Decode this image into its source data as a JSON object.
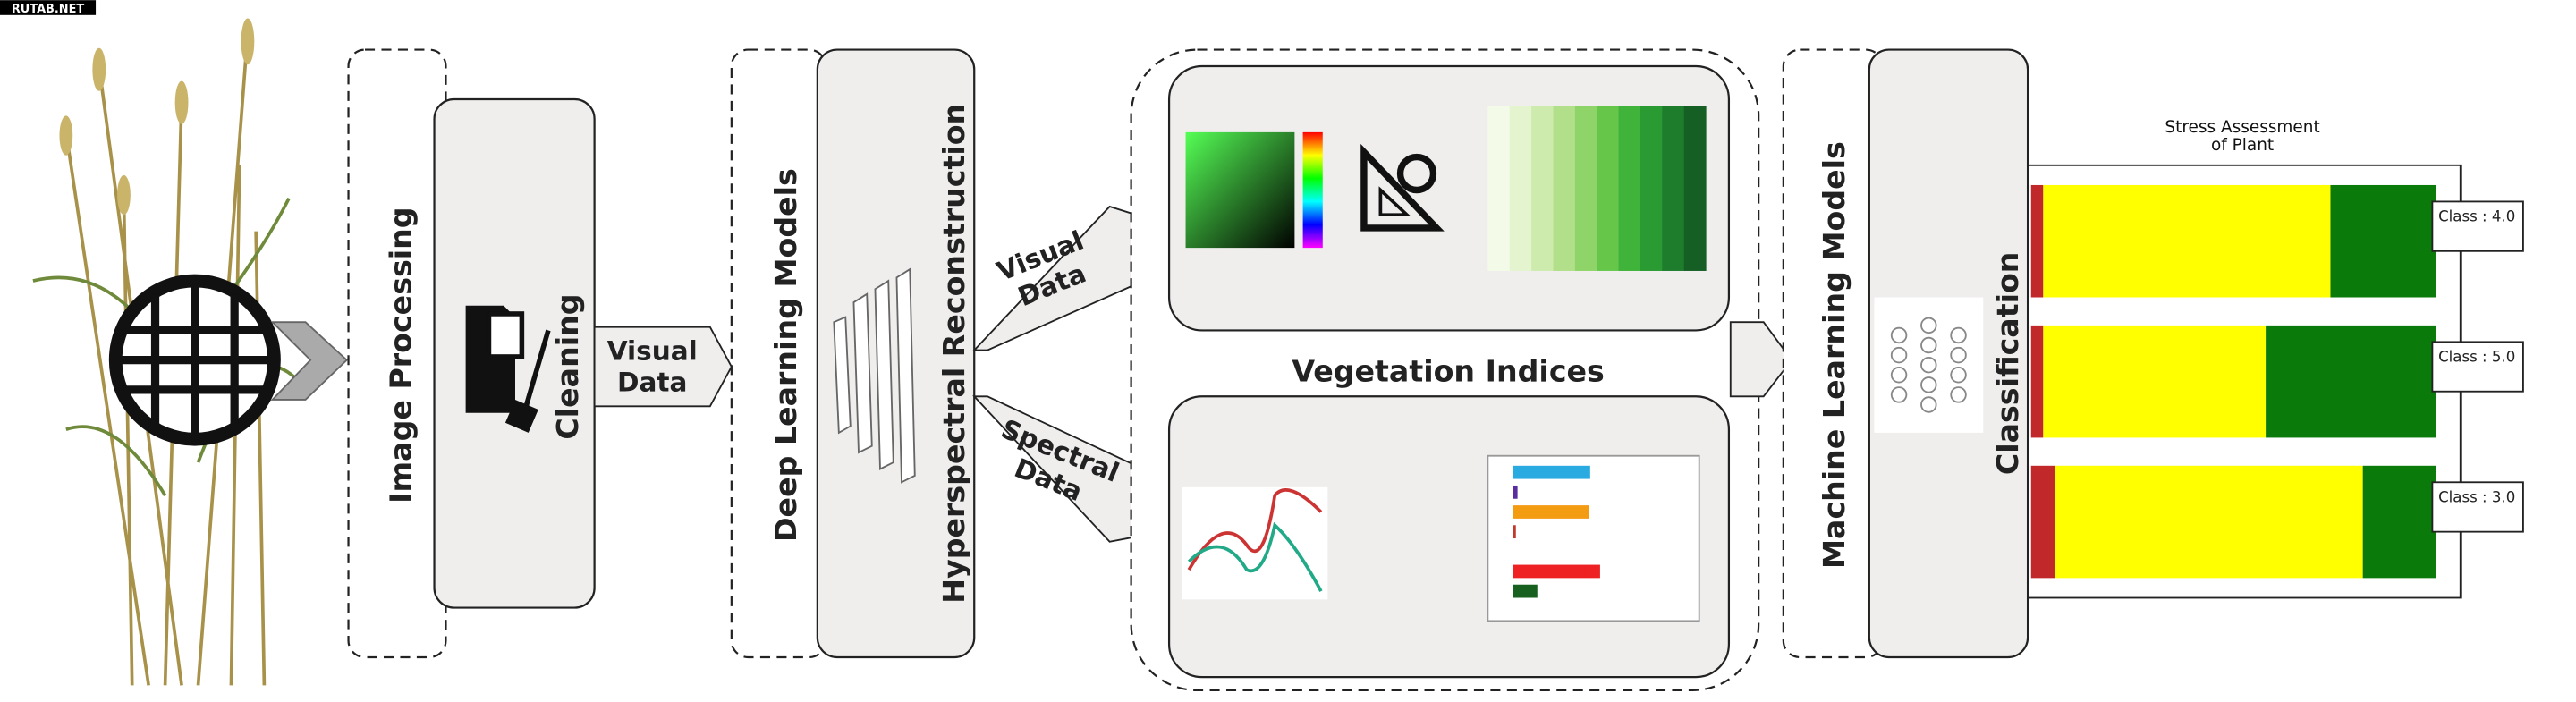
{
  "watermark": "RUTAB.NET",
  "image_processing": "Image Processing",
  "cleaning": "Cleaning",
  "visual_data_arrow": [
    "Visual",
    "Data"
  ],
  "deep_learning": "Deep Learning  Models",
  "hyperspectral": "Hyperspectral Reconstruction",
  "visual_data_branch": [
    "Visual",
    "Data"
  ],
  "spectral_data_branch": [
    "Spectral",
    "Data"
  ],
  "vegetation_indices": "Vegetation Indices",
  "machine_learning": "Machine Learning Models",
  "classification": "Classification",
  "assessment": {
    "type": "bar",
    "title": [
      "Stress Assessment",
      "of Plant"
    ],
    "colors": [
      "#c0282a",
      "#ffff00",
      "#0a7a0a"
    ],
    "xlim": [
      0,
      100
    ],
    "rows": [
      {
        "label": "Class : 4.0",
        "values": [
          3,
          71,
          26
        ]
      },
      {
        "label": "Class : 5.0",
        "values": [
          3,
          55,
          42
        ]
      },
      {
        "label": "Class : 3.0",
        "values": [
          6,
          76,
          18
        ]
      }
    ]
  }
}
